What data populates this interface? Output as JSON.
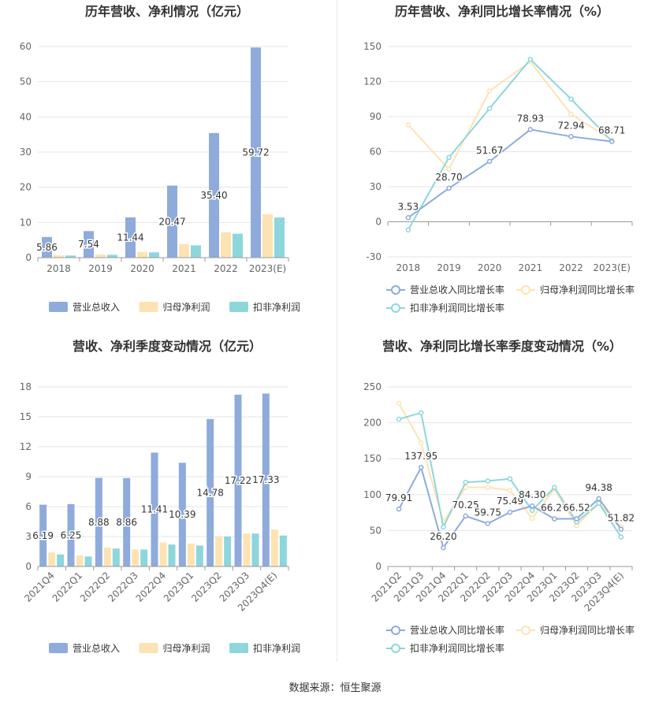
{
  "footer": {
    "source": "数据来源：恒生聚源"
  },
  "chart_data": [
    {
      "id": "annual_values",
      "type": "bar",
      "title": "历年营收、净利情况（亿元）",
      "categories": [
        "2018",
        "2019",
        "2020",
        "2021",
        "2022",
        "2023(E)"
      ],
      "ylim": [
        0,
        60
      ],
      "yticks": [
        0,
        10,
        20,
        30,
        40,
        50,
        60
      ],
      "series": [
        {
          "name": "营业总收入",
          "color": "#8eabdb",
          "values": [
            5.86,
            7.54,
            11.44,
            20.47,
            35.4,
            59.72
          ],
          "labels": [
            "5.86",
            "7.54",
            "11.44",
            "20.47",
            "35.40",
            "59.72"
          ]
        },
        {
          "name": "归母净利润",
          "color": "#fde3b3",
          "values": [
            0.7,
            0.9,
            1.6,
            3.9,
            7.2,
            12.3
          ]
        },
        {
          "name": "扣非净利润",
          "color": "#8dd6dc",
          "values": [
            0.6,
            0.8,
            1.5,
            3.5,
            6.8,
            11.4
          ]
        }
      ],
      "legend": "bottom"
    },
    {
      "id": "annual_growth",
      "type": "line",
      "title": "历年营收、净利同比增长率情况（%）",
      "categories": [
        "2018",
        "2019",
        "2020",
        "2021",
        "2022",
        "2023(E)"
      ],
      "ylim": [
        -30,
        150
      ],
      "yticks": [
        -30,
        0,
        30,
        60,
        90,
        120,
        150
      ],
      "series": [
        {
          "name": "营业总收入同比增长率",
          "color": "#8eabdb",
          "values": [
            3.53,
            28.7,
            51.67,
            78.93,
            72.94,
            68.71
          ],
          "labels": [
            "3.53",
            "28.70",
            "51.67",
            "78.93",
            "72.94",
            "68.71"
          ]
        },
        {
          "name": "归母净利润同比增长率",
          "color": "#fde3b3",
          "values": [
            83,
            45,
            112,
            137,
            92,
            70
          ]
        },
        {
          "name": "扣非净利润同比增长率",
          "color": "#8dd6dc",
          "values": [
            -7,
            55,
            97,
            139,
            105,
            69
          ]
        }
      ],
      "legend": "bottom"
    },
    {
      "id": "quarterly_values",
      "type": "bar",
      "title": "营收、净利季度变动情况（亿元）",
      "categories": [
        "2021Q4",
        "2022Q1",
        "2022Q2",
        "2022Q3",
        "2022Q4",
        "2023Q1",
        "2023Q2",
        "2023Q3",
        "2023Q4(E)"
      ],
      "ylim": [
        0,
        18
      ],
      "yticks": [
        0,
        3,
        6,
        9,
        12,
        15,
        18
      ],
      "series": [
        {
          "name": "营业总收入",
          "color": "#8eabdb",
          "values": [
            6.19,
            6.25,
            8.88,
            8.86,
            11.41,
            10.39,
            14.78,
            17.22,
            17.33
          ],
          "labels": [
            "6.19",
            "6.25",
            "8.88",
            "8.86",
            "11.41",
            "10.39",
            "14.78",
            "17.22",
            "17.33"
          ]
        },
        {
          "name": "归母净利润",
          "color": "#fde3b3",
          "values": [
            1.4,
            1.1,
            1.9,
            1.7,
            2.4,
            2.3,
            3.0,
            3.3,
            3.7
          ]
        },
        {
          "name": "扣非净利润",
          "color": "#8dd6dc",
          "values": [
            1.2,
            1.0,
            1.8,
            1.7,
            2.2,
            2.1,
            3.0,
            3.3,
            3.1
          ]
        }
      ],
      "legend": "bottom"
    },
    {
      "id": "quarterly_growth",
      "type": "line",
      "title": "营收、净利同比增长率季度变动情况（%）",
      "categories": [
        "2021Q2",
        "2021Q3",
        "2021Q4",
        "2022Q1",
        "2022Q2",
        "2022Q3",
        "2022Q4",
        "2023Q1",
        "2023Q2",
        "2023Q3",
        "2023Q4(E)"
      ],
      "ylim": [
        0,
        250
      ],
      "yticks": [
        0,
        50,
        100,
        150,
        200,
        250
      ],
      "series": [
        {
          "name": "营业总收入同比增长率",
          "color": "#8eabdb",
          "values": [
            79.91,
            137.95,
            26.2,
            70.25,
            59.75,
            75.49,
            84.3,
            66.27,
            66.52,
            94.38,
            51.82
          ],
          "labels": [
            "79.91",
            "137.95",
            "26.20",
            "70.25",
            "59.75",
            "75.49",
            "84.30",
            "66.27",
            "66.52",
            "94.38",
            "51.82"
          ]
        },
        {
          "name": "归母净利润同比增长率",
          "color": "#fde3b3",
          "values": [
            227,
            172,
            62,
            110,
            110,
            106,
            67,
            108,
            57,
            88,
            55
          ]
        },
        {
          "name": "扣非净利润同比增长率",
          "color": "#8dd6dc",
          "values": [
            205,
            214,
            55,
            117,
            119,
            122,
            78,
            110,
            62,
            88,
            41
          ]
        }
      ],
      "legend": "bottom"
    }
  ]
}
